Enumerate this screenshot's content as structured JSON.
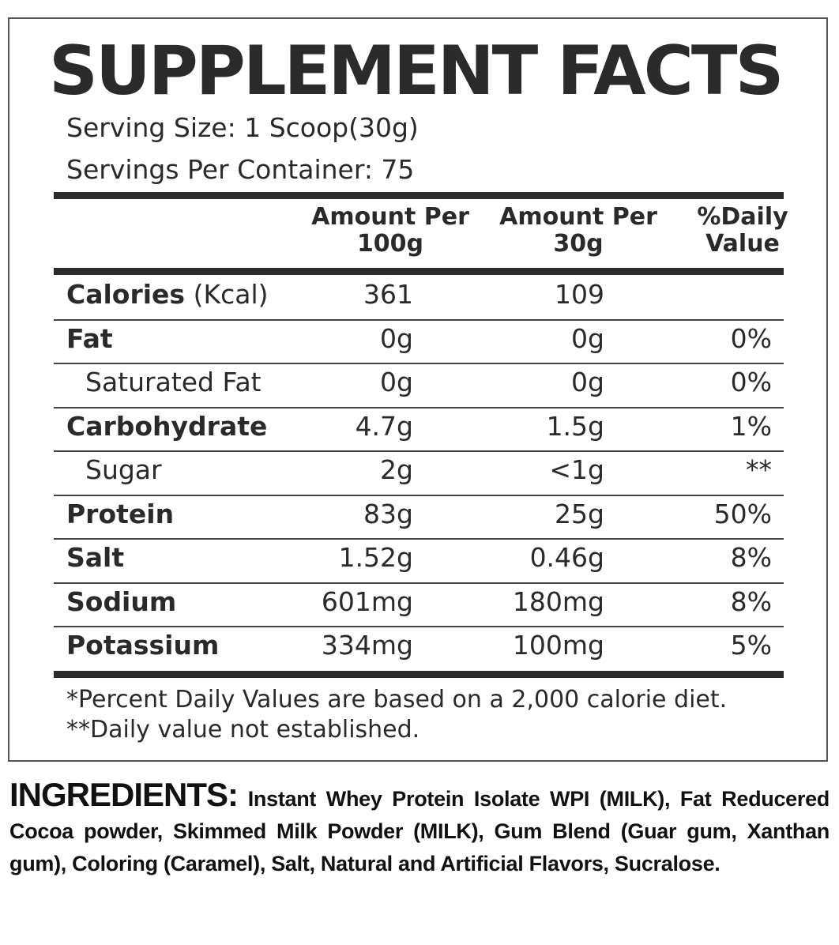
{
  "title": "SUPPLEMENT FACTS",
  "serving_size": "Serving Size: 1 Scoop(30g)",
  "servings_per_container": "Servings Per Container: 75",
  "table": {
    "headers": [
      [
        "Amount Per",
        "100g"
      ],
      [
        "Amount Per",
        "30g"
      ],
      [
        "%Daily",
        "Value"
      ]
    ],
    "rows": [
      {
        "label": "Calories",
        "unit": "(Kcal)",
        "per_100g": "361",
        "per_30g": "109"
      },
      {
        "label": "Fat",
        "per_100g": "0g",
        "per_30g": "0g",
        "daily_value": "0%"
      },
      {
        "label": "Saturated Fat",
        "indent": true,
        "per_100g": "0g",
        "per_30g": "0g",
        "daily_value": "0%"
      },
      {
        "label": "Carbohydrate",
        "per_100g": "4.7g",
        "per_30g": "1.5g",
        "daily_value": "1%"
      },
      {
        "label": "Sugar",
        "indent": true,
        "per_100g": "2g",
        "per_30g": "<1g",
        "daily_value": "**"
      },
      {
        "label": "Protein",
        "per_100g": "83g",
        "per_30g": "25g",
        "daily_value": "50%"
      },
      {
        "label": "Salt",
        "per_100g": "1.52g",
        "per_30g": "0.46g",
        "daily_value": "8%"
      },
      {
        "label": "Sodium",
        "per_100g": "601mg",
        "per_30g": "180mg",
        "daily_value": "8%"
      },
      {
        "label": "Potassium",
        "per_100g": "334mg",
        "per_30g": "100mg",
        "daily_value": "5%"
      }
    ]
  },
  "footnotes": [
    "*Percent Daily Values are based on a 2,000 calorie diet.",
    "**Daily value not established."
  ],
  "ingredients": {
    "heading": "INGREDIENTS:",
    "text": "Instant Whey Protein Isolate WPI (MILK), Fat Reducered Cocoa powder, Skimmed Milk Powder (MILK), Gum Blend (Guar gum, Xanthan gum), Coloring (Caramel), Salt, Natural and Artificial Flavors, Sucralose."
  }
}
